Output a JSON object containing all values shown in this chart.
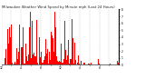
{
  "title": "Milwaukee Weather Wind Speed by Minute mph (Last 24 Hours)",
  "bar_color": "#ff0000",
  "background_color": "#ffffff",
  "plot_bg_color": "#ffffff",
  "grid_color": "#888888",
  "ylim": [
    0,
    8
  ],
  "yticks": [
    0,
    1,
    2,
    3,
    4,
    5,
    6,
    7,
    8
  ],
  "num_bars": 1440,
  "title_fontsize": 2.8,
  "tick_fontsize": 2.2,
  "seed": 42
}
